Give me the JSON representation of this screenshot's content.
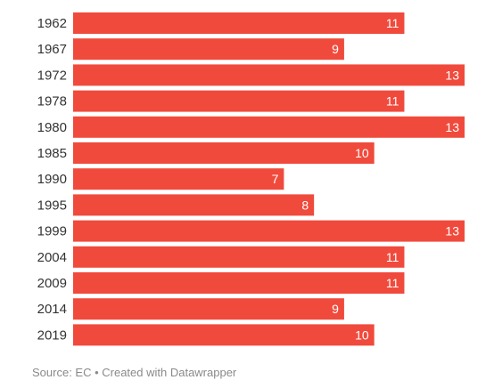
{
  "chart_data": {
    "type": "bar",
    "orientation": "horizontal",
    "categories": [
      "1962",
      "1967",
      "1972",
      "1978",
      "1980",
      "1985",
      "1990",
      "1995",
      "1999",
      "2004",
      "2009",
      "2014",
      "2019"
    ],
    "values": [
      11,
      9,
      13,
      11,
      13,
      10,
      7,
      8,
      13,
      11,
      11,
      9,
      10
    ],
    "xlim": [
      0,
      13
    ],
    "bar_color": "#f04a3c",
    "label_color": "#ffffff",
    "value_labels": "inside-end",
    "grid": false,
    "legend": "none"
  },
  "footer": {
    "source_text": "Source: EC • Created with Datawrapper"
  }
}
